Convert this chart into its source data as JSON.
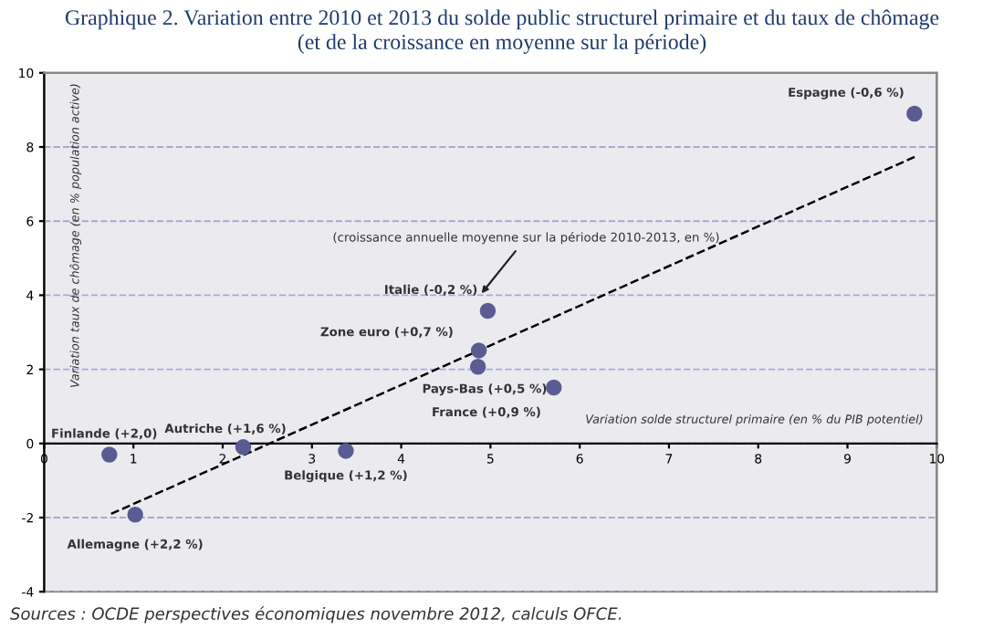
{
  "chart_data": {
    "type": "scatter",
    "title": "Graphique 2. Variation entre 2010 et 2013 du solde public structurel primaire et du taux de chômage\n(et de la croissance en moyenne sur la période)",
    "xlabel": "Variation solde structurel primaire (en % du PIB potentiel)",
    "ylabel": "Variation taux de chômage (en % population active)",
    "xlim": [
      0,
      10
    ],
    "xticks": [
      0,
      1,
      2,
      3,
      4,
      5,
      6,
      7,
      8,
      9,
      10
    ],
    "ylim": [
      -4,
      10
    ],
    "yticks": [
      -4,
      -2,
      0,
      2,
      4,
      6,
      8,
      10
    ],
    "grid": "y",
    "legend": false,
    "marker": "circle",
    "series": [
      {
        "color": "#5b5b94",
        "x": [
          9.75,
          4.97,
          4.87,
          4.86,
          5.71,
          2.23,
          0.73,
          3.38,
          1.02
        ],
        "values": [
          8.9,
          3.58,
          2.51,
          2.07,
          1.51,
          -0.1,
          -0.3,
          -0.2,
          -1.92
        ]
      },
      {
        "type": "line",
        "color": "#000000",
        "line_style": "dashed",
        "marker": "none",
        "x": [
          0.75,
          9.77
        ],
        "values": [
          -1.9,
          7.75
        ]
      }
    ],
    "annotations": [
      {
        "text": "Espagne (-0,6 %)",
        "x": 9.75,
        "y": 8.9
      },
      {
        "text": "Italie (-0,2 %)",
        "x": 4.97,
        "y": 3.58
      },
      {
        "text": "Zone euro (+0,7 %)",
        "x": 4.87,
        "y": 2.51
      },
      {
        "text": "Pays-Bas (+0,5 %)",
        "x": 4.86,
        "y": 2.07
      },
      {
        "text": "France (+0,9 %)",
        "x": 5.71,
        "y": 1.51
      },
      {
        "text": "Autriche (+1,6 %)",
        "x": 2.23,
        "y": -0.1
      },
      {
        "text": "Finlande (+2,0)",
        "x": 0.73,
        "y": -0.3
      },
      {
        "text": "Belgique (+1,2 %)",
        "x": 3.38,
        "y": -0.2
      },
      {
        "text": "Allemagne (+2,2 %)",
        "x": 1.02,
        "y": -1.92
      },
      "(croissance annuelle moyenne sur la période 2010-2013, en %)",
      "Sources : OCDE perspectives économiques novembre 2012, calculs OFCE."
    ]
  }
}
